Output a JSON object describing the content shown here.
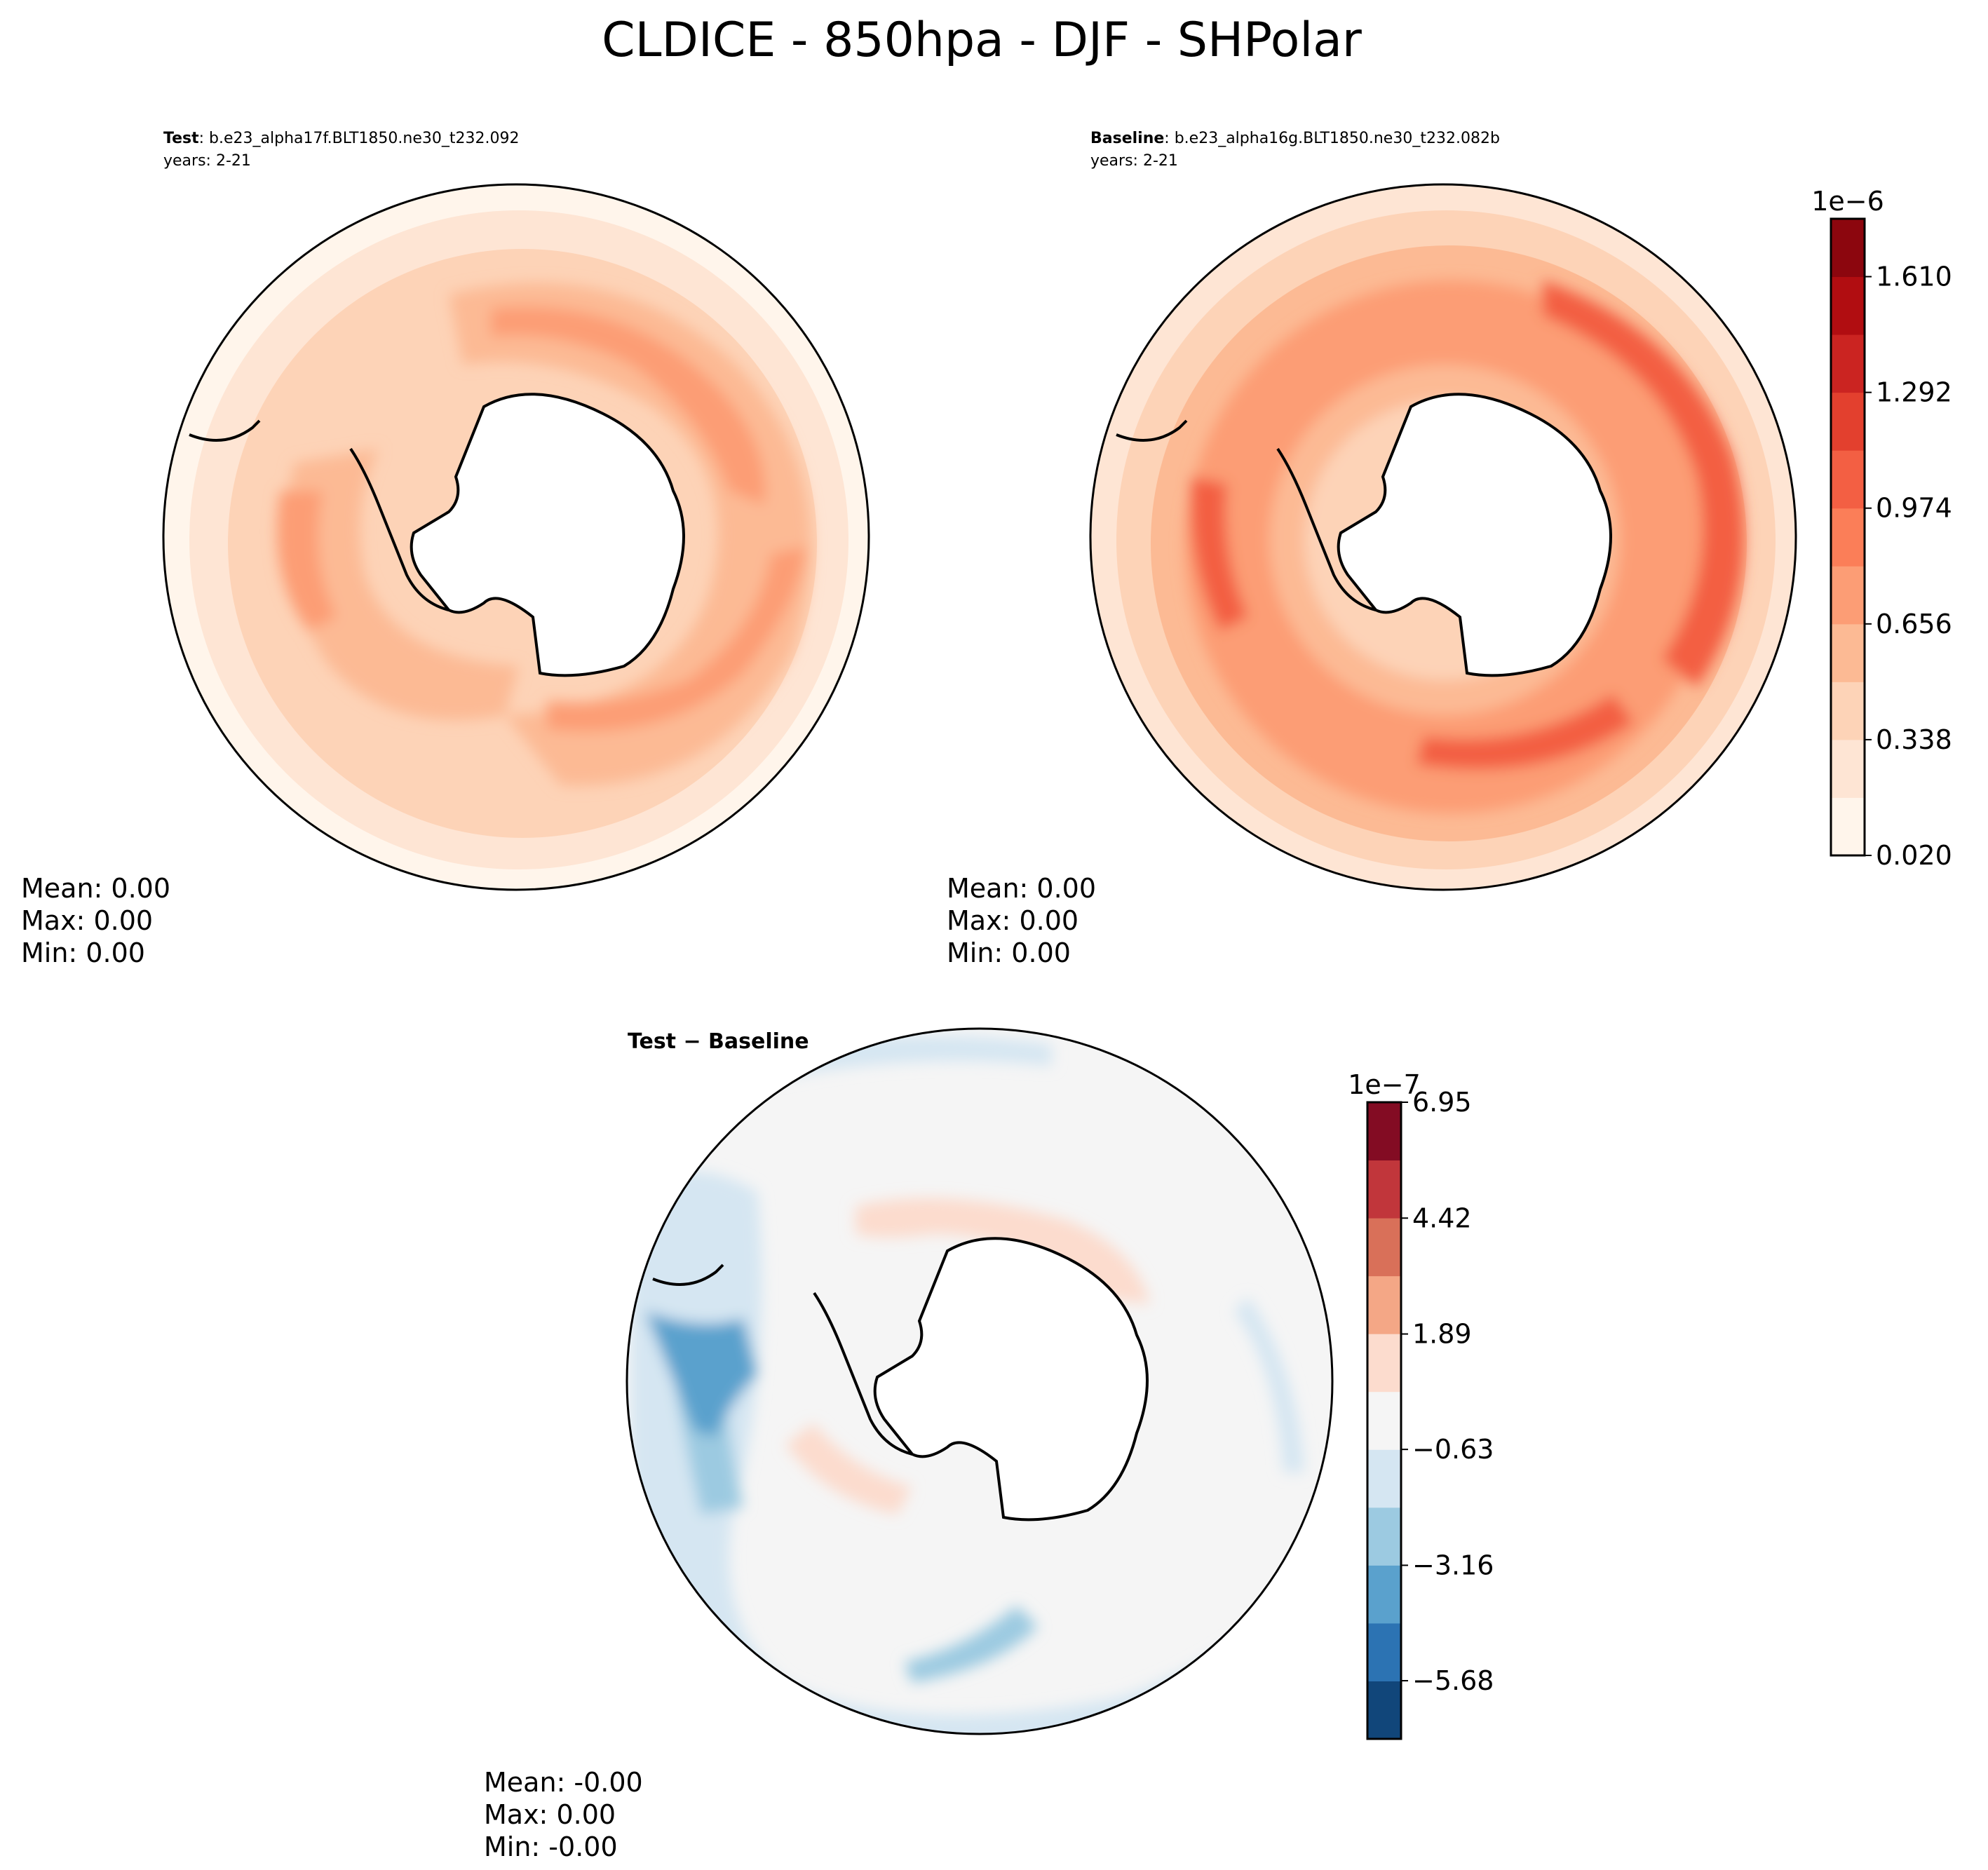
{
  "figure": {
    "title": "CLDICE - 850hpa - DJF - SHPolar"
  },
  "panels": {
    "test": {
      "label": "Test",
      "case": ": b.e23_alpha17f.BLT1850.ne30_t232.092",
      "years": "years: 2-21",
      "stats": {
        "mean": "Mean:  0.00",
        "max": "Max:  0.00",
        "min": "Min:  0.00"
      }
    },
    "baseline": {
      "label": "Baseline",
      "case": ": b.e23_alpha16g.BLT1850.ne30_t232.082b",
      "years": "years: 2-21",
      "stats": {
        "mean": "Mean:  0.00",
        "max": "Max:  0.00",
        "min": "Min:  0.00"
      }
    },
    "diff": {
      "label": "Test − Baseline",
      "stats": {
        "mean": "Mean: -0.00",
        "max": "Max:  0.00",
        "min": "Min: -0.00"
      }
    }
  },
  "chart_data": [
    {
      "type": "heatmap",
      "projection": "south-polar-stereographic",
      "panel": "test",
      "colormap": "Reds",
      "colorbar_ref": "main_colorbar"
    },
    {
      "type": "heatmap",
      "projection": "south-polar-stereographic",
      "panel": "baseline",
      "colormap": "Reds",
      "colorbar_ref": "main_colorbar"
    },
    {
      "type": "heatmap",
      "projection": "south-polar-stereographic",
      "panel": "diff",
      "colormap": "RdBu_r",
      "colorbar_ref": "diff_colorbar"
    }
  ],
  "main_colorbar": {
    "scale_label": "1e−6",
    "ticks": [
      "0.020",
      "0.338",
      "0.656",
      "0.974",
      "1.292",
      "1.610"
    ],
    "tick_values": [
      0.02,
      0.338,
      0.656,
      0.974,
      1.292,
      1.61
    ],
    "vmin": 0.02,
    "vmax": 1.769,
    "colors": [
      "#fff5eb",
      "#fee5d4",
      "#fdd3b7",
      "#fcba94",
      "#fc9d75",
      "#fb7e58",
      "#f35f43",
      "#e3402e",
      "#cb2421",
      "#b10d11",
      "#8c060e"
    ]
  },
  "diff_colorbar": {
    "scale_label": "1e−7",
    "ticks": [
      "−5.68",
      "−3.16",
      "−0.63",
      "1.89",
      "4.42",
      "6.95"
    ],
    "tick_values": [
      -5.68,
      -3.16,
      -0.63,
      1.89,
      4.42,
      6.95
    ],
    "vmin": -6.95,
    "vmax": 6.95,
    "colors": [
      "#11467a",
      "#2c73b3",
      "#5aa1cd",
      "#9ccae1",
      "#d5e6f2",
      "#f5f5f5",
      "#fcdcce",
      "#f4a786",
      "#d97059",
      "#c1363b",
      "#830c23"
    ]
  }
}
